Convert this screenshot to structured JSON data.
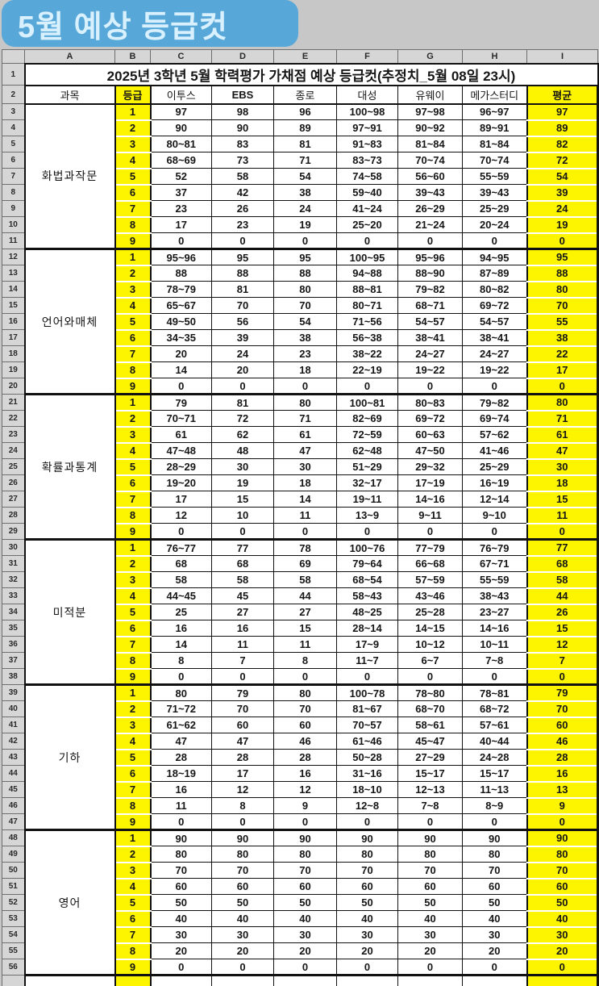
{
  "banner": {
    "title": "5월 예상 등급컷"
  },
  "sheet": {
    "column_letters": [
      "A",
      "B",
      "C",
      "D",
      "E",
      "F",
      "G",
      "H",
      "I"
    ],
    "first_row_number": 1,
    "last_row_number": 56,
    "title": "2025년 3학년 5월 학력평가 가채점 예상 등급컷(추정치_5월 08일 23시)",
    "headers": [
      "과목",
      "등급",
      "이투스",
      "EBS",
      "종로",
      "대성",
      "유웨이",
      "메가스터디",
      "평균"
    ],
    "sections": [
      {
        "subject": "화법과작문",
        "rows": [
          {
            "grade": "1",
            "values": [
              "97",
              "98",
              "96",
              "100~98",
              "97~98",
              "96~97"
            ],
            "average": "97"
          },
          {
            "grade": "2",
            "values": [
              "90",
              "90",
              "89",
              "97~91",
              "90~92",
              "89~91"
            ],
            "average": "89"
          },
          {
            "grade": "3",
            "values": [
              "80~81",
              "83",
              "81",
              "91~83",
              "81~84",
              "81~84"
            ],
            "average": "82"
          },
          {
            "grade": "4",
            "values": [
              "68~69",
              "73",
              "71",
              "83~73",
              "70~74",
              "70~74"
            ],
            "average": "72"
          },
          {
            "grade": "5",
            "values": [
              "52",
              "58",
              "54",
              "74~58",
              "56~60",
              "55~59"
            ],
            "average": "54"
          },
          {
            "grade": "6",
            "values": [
              "37",
              "42",
              "38",
              "59~40",
              "39~43",
              "39~43"
            ],
            "average": "39"
          },
          {
            "grade": "7",
            "values": [
              "23",
              "26",
              "24",
              "41~24",
              "26~29",
              "25~29"
            ],
            "average": "24"
          },
          {
            "grade": "8",
            "values": [
              "17",
              "23",
              "19",
              "25~20",
              "21~24",
              "20~24"
            ],
            "average": "19"
          },
          {
            "grade": "9",
            "values": [
              "0",
              "0",
              "0",
              "0",
              "0",
              "0"
            ],
            "average": "0"
          }
        ]
      },
      {
        "subject": "언어와매체",
        "rows": [
          {
            "grade": "1",
            "values": [
              "95~96",
              "95",
              "95",
              "100~95",
              "95~96",
              "94~95"
            ],
            "average": "95"
          },
          {
            "grade": "2",
            "values": [
              "88",
              "88",
              "88",
              "94~88",
              "88~90",
              "87~89"
            ],
            "average": "88"
          },
          {
            "grade": "3",
            "values": [
              "78~79",
              "81",
              "80",
              "88~81",
              "79~82",
              "80~82"
            ],
            "average": "80"
          },
          {
            "grade": "4",
            "values": [
              "65~67",
              "70",
              "70",
              "80~71",
              "68~71",
              "69~72"
            ],
            "average": "70"
          },
          {
            "grade": "5",
            "values": [
              "49~50",
              "56",
              "54",
              "71~56",
              "54~57",
              "54~57"
            ],
            "average": "55"
          },
          {
            "grade": "6",
            "values": [
              "34~35",
              "39",
              "38",
              "56~38",
              "38~41",
              "38~41"
            ],
            "average": "38"
          },
          {
            "grade": "7",
            "values": [
              "20",
              "24",
              "23",
              "38~22",
              "24~27",
              "24~27"
            ],
            "average": "22"
          },
          {
            "grade": "8",
            "values": [
              "14",
              "20",
              "18",
              "22~19",
              "19~22",
              "19~22"
            ],
            "average": "17"
          },
          {
            "grade": "9",
            "values": [
              "0",
              "0",
              "0",
              "0",
              "0",
              "0"
            ],
            "average": "0"
          }
        ]
      },
      {
        "subject": "확률과통계",
        "rows": [
          {
            "grade": "1",
            "values": [
              "79",
              "81",
              "80",
              "100~81",
              "80~83",
              "79~82"
            ],
            "average": "80"
          },
          {
            "grade": "2",
            "values": [
              "70~71",
              "72",
              "71",
              "82~69",
              "69~72",
              "69~74"
            ],
            "average": "71"
          },
          {
            "grade": "3",
            "values": [
              "61",
              "62",
              "61",
              "72~59",
              "60~63",
              "57~62"
            ],
            "average": "61"
          },
          {
            "grade": "4",
            "values": [
              "47~48",
              "48",
              "47",
              "62~48",
              "47~50",
              "41~46"
            ],
            "average": "47"
          },
          {
            "grade": "5",
            "values": [
              "28~29",
              "30",
              "30",
              "51~29",
              "29~32",
              "25~29"
            ],
            "average": "30"
          },
          {
            "grade": "6",
            "values": [
              "19~20",
              "19",
              "18",
              "32~17",
              "17~19",
              "16~19"
            ],
            "average": "18"
          },
          {
            "grade": "7",
            "values": [
              "17",
              "15",
              "14",
              "19~11",
              "14~16",
              "12~14"
            ],
            "average": "15"
          },
          {
            "grade": "8",
            "values": [
              "12",
              "10",
              "11",
              "13~9",
              "9~11",
              "9~10"
            ],
            "average": "11"
          },
          {
            "grade": "9",
            "values": [
              "0",
              "0",
              "0",
              "0",
              "0",
              "0"
            ],
            "average": "0"
          }
        ]
      },
      {
        "subject": "미적분",
        "rows": [
          {
            "grade": "1",
            "values": [
              "76~77",
              "77",
              "78",
              "100~76",
              "77~79",
              "76~79"
            ],
            "average": "77"
          },
          {
            "grade": "2",
            "values": [
              "68",
              "68",
              "69",
              "79~64",
              "66~68",
              "67~71"
            ],
            "average": "68"
          },
          {
            "grade": "3",
            "values": [
              "58",
              "58",
              "58",
              "68~54",
              "57~59",
              "55~59"
            ],
            "average": "58"
          },
          {
            "grade": "4",
            "values": [
              "44~45",
              "45",
              "44",
              "58~43",
              "43~46",
              "38~43"
            ],
            "average": "44"
          },
          {
            "grade": "5",
            "values": [
              "25",
              "27",
              "27",
              "48~25",
              "25~28",
              "23~27"
            ],
            "average": "26"
          },
          {
            "grade": "6",
            "values": [
              "16",
              "16",
              "15",
              "28~14",
              "14~15",
              "14~16"
            ],
            "average": "15"
          },
          {
            "grade": "7",
            "values": [
              "14",
              "11",
              "11",
              "17~9",
              "10~12",
              "10~11"
            ],
            "average": "12"
          },
          {
            "grade": "8",
            "values": [
              "8",
              "7",
              "8",
              "11~7",
              "6~7",
              "7~8"
            ],
            "average": "7"
          },
          {
            "grade": "9",
            "values": [
              "0",
              "0",
              "0",
              "0",
              "0",
              "0"
            ],
            "average": "0"
          }
        ]
      },
      {
        "subject": "기하",
        "rows": [
          {
            "grade": "1",
            "values": [
              "80",
              "79",
              "80",
              "100~78",
              "78~80",
              "78~81"
            ],
            "average": "79"
          },
          {
            "grade": "2",
            "values": [
              "71~72",
              "70",
              "70",
              "81~67",
              "68~70",
              "68~72"
            ],
            "average": "70"
          },
          {
            "grade": "3",
            "values": [
              "61~62",
              "60",
              "60",
              "70~57",
              "58~61",
              "57~61"
            ],
            "average": "60"
          },
          {
            "grade": "4",
            "values": [
              "47",
              "47",
              "46",
              "61~46",
              "45~47",
              "40~44"
            ],
            "average": "46"
          },
          {
            "grade": "5",
            "values": [
              "28",
              "28",
              "28",
              "50~28",
              "27~29",
              "24~28"
            ],
            "average": "28"
          },
          {
            "grade": "6",
            "values": [
              "18~19",
              "17",
              "16",
              "31~16",
              "15~17",
              "15~17"
            ],
            "average": "16"
          },
          {
            "grade": "7",
            "values": [
              "16",
              "12",
              "12",
              "18~10",
              "12~13",
              "11~13"
            ],
            "average": "13"
          },
          {
            "grade": "8",
            "values": [
              "11",
              "8",
              "9",
              "12~8",
              "7~8",
              "8~9"
            ],
            "average": "9"
          },
          {
            "grade": "9",
            "values": [
              "0",
              "0",
              "0",
              "0",
              "0",
              "0"
            ],
            "average": "0"
          }
        ]
      },
      {
        "subject": "영어",
        "rows": [
          {
            "grade": "1",
            "values": [
              "90",
              "90",
              "90",
              "90",
              "90",
              "90"
            ],
            "average": "90"
          },
          {
            "grade": "2",
            "values": [
              "80",
              "80",
              "80",
              "80",
              "80",
              "80"
            ],
            "average": "80"
          },
          {
            "grade": "3",
            "values": [
              "70",
              "70",
              "70",
              "70",
              "70",
              "70"
            ],
            "average": "70"
          },
          {
            "grade": "4",
            "values": [
              "60",
              "60",
              "60",
              "60",
              "60",
              "60"
            ],
            "average": "60"
          },
          {
            "grade": "5",
            "values": [
              "50",
              "50",
              "50",
              "50",
              "50",
              "50"
            ],
            "average": "50"
          },
          {
            "grade": "6",
            "values": [
              "40",
              "40",
              "40",
              "40",
              "40",
              "40"
            ],
            "average": "40"
          },
          {
            "grade": "7",
            "values": [
              "30",
              "30",
              "30",
              "30",
              "30",
              "30"
            ],
            "average": "30"
          },
          {
            "grade": "8",
            "values": [
              "20",
              "20",
              "20",
              "20",
              "20",
              "20"
            ],
            "average": "20"
          },
          {
            "grade": "9",
            "values": [
              "0",
              "0",
              "0",
              "0",
              "0",
              "0"
            ],
            "average": "0"
          }
        ]
      }
    ]
  },
  "colors": {
    "banner_blue": "#57a8d9",
    "banner_text": "#d9f1fe",
    "highlight_yellow": "#fdf400",
    "header_gray": "#d6d6d6",
    "page_background": "#c7c7c7",
    "grid_line": "#111111"
  }
}
